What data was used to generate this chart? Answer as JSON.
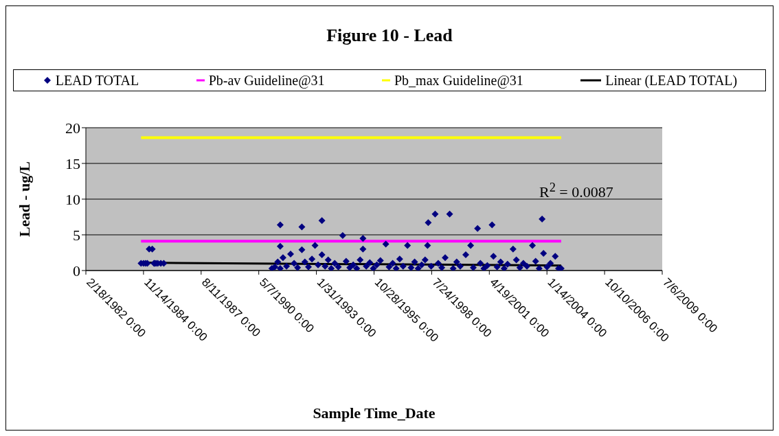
{
  "chart_data": {
    "type": "scatter",
    "title": "Figure 10 - Lead",
    "xlabel": "Sample Time_Date",
    "ylabel": "Lead - ug/L",
    "annotations": [
      "R$^{2}$ = 0.0087"
    ],
    "legend": "top",
    "grid": "y",
    "marker": "diamond",
    "xlim": [
      "1982-02-18",
      "2009-07-06"
    ],
    "xticks": [
      {
        "value": "1982-02-18",
        "label": "2/18/1982 0:00"
      },
      {
        "value": "1984-11-14",
        "label": "11/14/1984 0:00"
      },
      {
        "value": "1987-08-11",
        "label": "8/11/1987 0:00"
      },
      {
        "value": "1990-05-07",
        "label": "5/7/1990 0:00"
      },
      {
        "value": "1993-01-31",
        "label": "1/31/1993 0:00"
      },
      {
        "value": "1995-10-28",
        "label": "10/28/1995 0:00"
      },
      {
        "value": "1998-07-24",
        "label": "7/24/1998 0:00"
      },
      {
        "value": "2001-04-19",
        "label": "4/19/2001 0:00"
      },
      {
        "value": "2004-01-14",
        "label": "1/14/2004 0:00"
      },
      {
        "value": "2006-10-10",
        "label": "10/10/2006 0:00"
      },
      {
        "value": "2009-07-06",
        "label": "7/6/2009 0:00"
      }
    ],
    "ylim": [
      0,
      20
    ],
    "yticks": [
      0,
      5,
      10,
      15,
      20
    ],
    "series": [
      {
        "name": "LEAD TOTAL",
        "color": "#000080",
        "x": [
          "1984-10-02",
          "1984-11-15",
          "1984-12-20",
          "1985-01-20",
          "1985-02-20",
          "1985-04-15",
          "1985-05-15",
          "1985-05-25",
          "1985-06-20",
          "1985-07-20",
          "1985-09-10",
          "1985-11-01",
          "1990-12-21",
          "1991-02-10",
          "1991-04-01",
          "1991-05-14",
          "1991-05-14",
          "1991-05-14",
          "1991-07-01",
          "1991-09-01",
          "1991-11-10",
          "1992-01-10",
          "1992-03-10",
          "1992-05-24",
          "1992-05-24",
          "1992-07-15",
          "1992-09-15",
          "1992-11-15",
          "1993-01-07",
          "1993-03-01",
          "1993-05-07",
          "1993-05-07",
          "1993-07-01",
          "1993-08-23",
          "1993-10-15",
          "1993-12-15",
          "1994-02-15",
          "1994-05-02",
          "1994-07-01",
          "1994-09-01",
          "1994-11-01",
          "1995-01-01",
          "1995-03-01",
          "1995-04-19",
          "1995-04-19",
          "1995-06-15",
          "1995-08-15",
          "1995-10-15",
          "1995-12-15",
          "1996-02-15",
          "1996-05-19",
          "1996-07-15",
          "1996-09-15",
          "1996-11-15",
          "1997-01-15",
          "1997-03-15",
          "1997-05-30",
          "1997-08-01",
          "1997-10-01",
          "1997-12-01",
          "1998-02-01",
          "1998-04-01",
          "1998-05-13",
          "1998-05-25",
          "1998-07-15",
          "1998-09-22",
          "1998-11-15",
          "1999-01-15",
          "1999-03-15",
          "1999-06-01",
          "1999-08-01",
          "1999-10-01",
          "1999-12-01",
          "2000-03-06",
          "2000-05-30",
          "2000-07-15",
          "2000-09-27",
          "2000-11-15",
          "2001-01-15",
          "2001-03-15",
          "2001-06-06",
          "2001-06-30",
          "2001-09-01",
          "2001-11-01",
          "2002-01-01",
          "2002-03-01",
          "2002-06-05",
          "2002-08-01",
          "2002-10-01",
          "2002-12-01",
          "2003-02-01",
          "2003-05-07",
          "2003-07-01",
          "2003-09-01",
          "2003-10-22",
          "2003-11-15",
          "2004-01-15",
          "2004-03-15",
          "2004-06-06",
          "2004-08-01",
          "2004-09-17"
        ],
        "values": [
          1,
          1,
          1,
          1,
          3,
          3,
          1,
          1,
          1,
          1,
          1,
          1,
          0.3,
          0.5,
          1.2,
          6.4,
          3.4,
          0.3,
          1.8,
          0.6,
          2.3,
          1.0,
          0.4,
          6.1,
          2.9,
          1.2,
          0.5,
          1.6,
          3.5,
          0.8,
          7.0,
          2.2,
          0.6,
          1.5,
          0.3,
          1.0,
          0.5,
          4.9,
          1.3,
          0.4,
          0.8,
          0.3,
          1.5,
          4.5,
          3.0,
          0.6,
          1.1,
          0.3,
          0.8,
          1.4,
          3.7,
          0.5,
          1.0,
          0.3,
          1.6,
          0.6,
          3.5,
          0.4,
          1.2,
          0.3,
          0.8,
          1.5,
          3.5,
          6.7,
          0.6,
          7.9,
          1.0,
          0.4,
          1.8,
          7.9,
          0.3,
          1.2,
          0.6,
          2.2,
          3.5,
          0.4,
          5.9,
          1.0,
          0.3,
          0.7,
          6.4,
          2.0,
          0.5,
          1.2,
          0.3,
          0.9,
          3.0,
          1.5,
          0.4,
          1.0,
          0.6,
          3.5,
          1.3,
          0.3,
          7.2,
          2.4,
          0.5,
          1.0,
          2.0,
          0.3,
          0.3
        ]
      },
      {
        "name": "Pb-av Guideline@31",
        "type": "line",
        "marker": "none",
        "color": "#ff00ff",
        "x": [
          "1984-10-02",
          "2004-09-17"
        ],
        "values": [
          4.1,
          4.1
        ]
      },
      {
        "name": "Pb_max Guideline@31",
        "type": "line",
        "marker": "none",
        "color": "#ffff00",
        "x": [
          "1984-10-02",
          "2004-09-17"
        ],
        "values": [
          18.6,
          18.6
        ]
      },
      {
        "name": "Linear (LEAD TOTAL)",
        "type": "line",
        "marker": "none",
        "color": "#000000",
        "x": [
          "1984-10-02",
          "2004-09-17"
        ],
        "values": [
          1.1,
          0.7
        ]
      }
    ]
  }
}
